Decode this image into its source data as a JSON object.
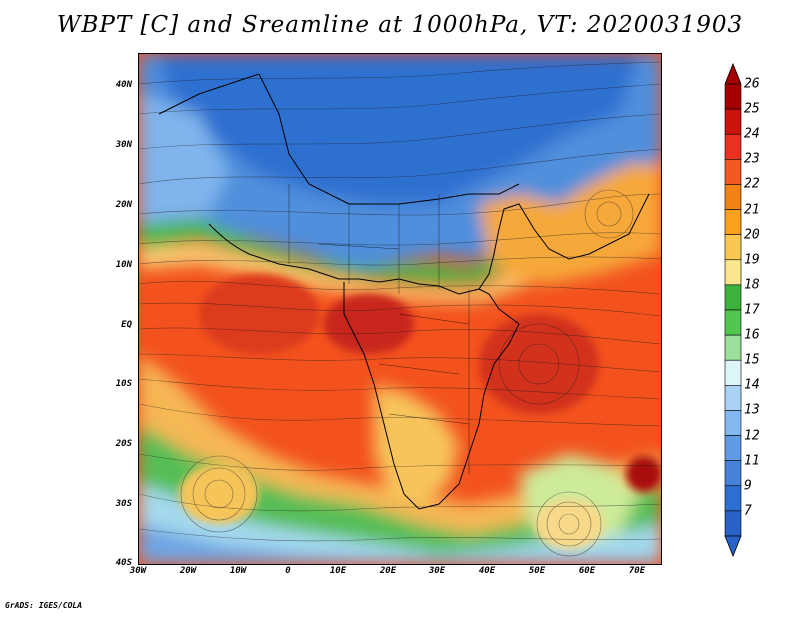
{
  "title": "WBPT [C] and Sreamline at 1000hPa, VT: 2020031903",
  "footer": "GrADS: IGES/COLA",
  "map": {
    "lat_labels": [
      "40N",
      "30N",
      "20N",
      "10N",
      "EQ",
      "10S",
      "20S",
      "30S",
      "40S"
    ],
    "lat_values": [
      40,
      30,
      20,
      10,
      0,
      -10,
      -20,
      -30,
      -40
    ],
    "lon_labels": [
      "30W",
      "20W",
      "10W",
      "0",
      "10E",
      "20E",
      "30E",
      "40E",
      "50E",
      "60E",
      "70E"
    ],
    "lon_values": [
      -30,
      -20,
      -10,
      0,
      10,
      20,
      30,
      40,
      50,
      60,
      70
    ],
    "extent": {
      "lon_min": -30,
      "lon_max": 75,
      "lat_min": -40,
      "lat_max": 45
    }
  },
  "colorbar": {
    "labels": [
      "26",
      "25",
      "24",
      "23",
      "22",
      "21",
      "20",
      "19",
      "18",
      "17",
      "16",
      "15",
      "14",
      "13",
      "12",
      "11",
      "9",
      "7"
    ],
    "colors": [
      "#a50000",
      "#c8140a",
      "#e6321e",
      "#f05a1e",
      "#f58214",
      "#faa01e",
      "#fac850",
      "#fae68c",
      "#3cb43c",
      "#50c850",
      "#9be19b",
      "#dcf5f5",
      "#aad2f5",
      "#82b9f0",
      "#5f9be6",
      "#4682dc",
      "#2d6ed2",
      "#2861c8"
    ]
  }
}
